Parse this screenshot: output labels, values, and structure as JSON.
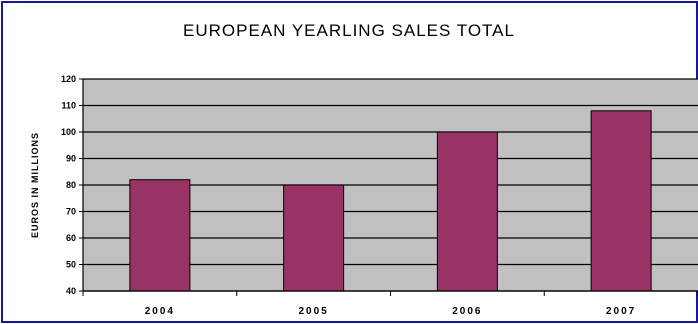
{
  "chart_data": {
    "type": "bar",
    "title": "EUROPEAN YEARLING SALES TOTAL",
    "xlabel": "",
    "ylabel": "EUROS IN MILLIONS",
    "categories": [
      "2004",
      "2005",
      "2006",
      "2007"
    ],
    "values": [
      82,
      80,
      100,
      108
    ],
    "ylim": [
      40,
      120
    ],
    "yticks": [
      40,
      50,
      60,
      70,
      80,
      90,
      100,
      110,
      120
    ],
    "grid": true,
    "legend": "none",
    "colors": {
      "bar": "#993366",
      "plot_background": "#c0c0c0",
      "frame": "#17179a"
    }
  }
}
